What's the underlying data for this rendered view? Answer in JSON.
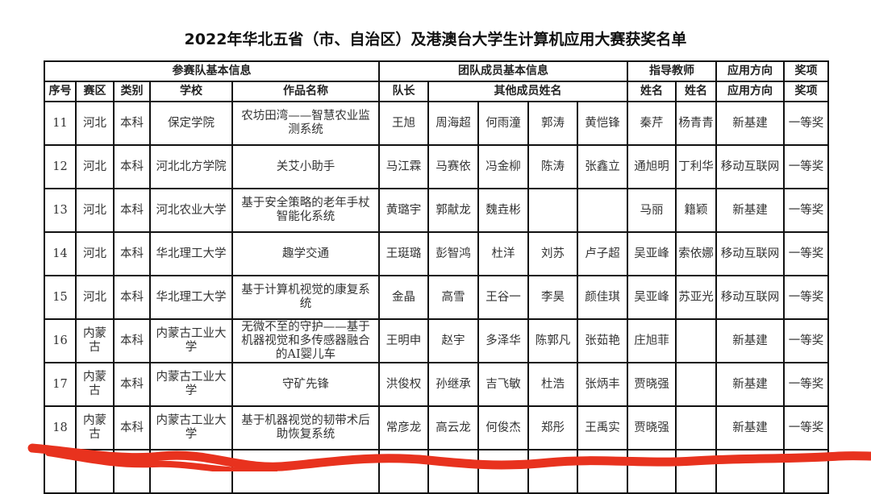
{
  "title": "2022年华北五省（市、自治区）及港澳台大学生计算机应用大赛获奖名单",
  "group_headers": [
    "参赛队基本信息",
    "团队成员基本信息",
    "指导教师",
    "应用方向",
    "奖项"
  ],
  "column_headers": [
    "序号",
    "赛区",
    "类别",
    "学校",
    "作品名称",
    "队长",
    "其他成员姓名",
    "姓名",
    "姓名",
    "应用方向",
    "奖项"
  ],
  "rows": [
    {
      "no": "11",
      "region": "河北",
      "category": "本科",
      "school": "保定学院",
      "work": "农坊田湾——智慧农业监测系统",
      "leader": "王旭",
      "members": [
        "周海超",
        "何雨潼",
        "郭涛",
        "黄恺锋"
      ],
      "teacher1": "秦芹",
      "teacher2": "杨青青",
      "direction": "新基建",
      "award": "一等奖"
    },
    {
      "no": "12",
      "region": "河北",
      "category": "本科",
      "school": "河北北方学院",
      "work": "关艾小助手",
      "leader": "马江霖",
      "members": [
        "马赛依",
        "冯金柳",
        "陈涛",
        "张鑫立"
      ],
      "teacher1": "通旭明",
      "teacher2": "丁利华",
      "direction": "移动互联网",
      "award": "一等奖"
    },
    {
      "no": "13",
      "region": "河北",
      "category": "本科",
      "school": "河北农业大学",
      "work": "基于安全策略的老年手杖智能化系统",
      "leader": "黄璐宇",
      "members": [
        "郭献龙",
        "魏垚彬",
        "",
        ""
      ],
      "teacher1": "马丽",
      "teacher2": "籍颖",
      "direction": "新基建",
      "award": "一等奖"
    },
    {
      "no": "14",
      "region": "河北",
      "category": "本科",
      "school": "华北理工大学",
      "work": "趣学交通",
      "leader": "王珽璐",
      "members": [
        "彭智鸿",
        "杜洋",
        "刘苏",
        "卢子超"
      ],
      "teacher1": "吴亚峰",
      "teacher2": "索依娜",
      "direction": "移动互联网",
      "award": "一等奖"
    },
    {
      "no": "15",
      "region": "河北",
      "category": "本科",
      "school": "华北理工大学",
      "work": "基于计算机视觉的康复系统",
      "leader": "金晶",
      "members": [
        "高雪",
        "王谷一",
        "李昊",
        "颜佳琪"
      ],
      "teacher1": "吴亚峰",
      "teacher2": "苏亚光",
      "direction": "移动互联网",
      "award": "一等奖"
    },
    {
      "no": "16",
      "region": "内蒙古",
      "category": "本科",
      "school": "内蒙古工业大学",
      "work": "无微不至的守护——基于机器视觉和多传感器融合的AI婴儿车",
      "leader": "王明申",
      "members": [
        "赵宇",
        "多泽华",
        "陈郭凡",
        "张茹艳"
      ],
      "teacher1": "庄旭菲",
      "teacher2": "",
      "direction": "新基建",
      "award": "一等奖"
    },
    {
      "no": "17",
      "region": "内蒙古",
      "category": "本科",
      "school": "内蒙古工业大学",
      "work": "守矿先锋",
      "leader": "洪俊权",
      "members": [
        "孙继承",
        "吉飞敏",
        "杜浩",
        "张炳丰"
      ],
      "teacher1": "贾晓强",
      "teacher2": "",
      "direction": "新基建",
      "award": "一等奖"
    },
    {
      "no": "18",
      "region": "内蒙古",
      "category": "本科",
      "school": "内蒙古工业大学",
      "work": "基于机器视觉的韧带术后助恢复系统",
      "leader": "常彦龙",
      "members": [
        "高云龙",
        "何俊杰",
        "郑彤",
        "王禹实"
      ],
      "teacher1": "贾晓强",
      "teacher2": "",
      "direction": "新基建",
      "award": "一等奖"
    }
  ],
  "colors": {
    "scribble": "#e8321e",
    "border": "#111111"
  }
}
